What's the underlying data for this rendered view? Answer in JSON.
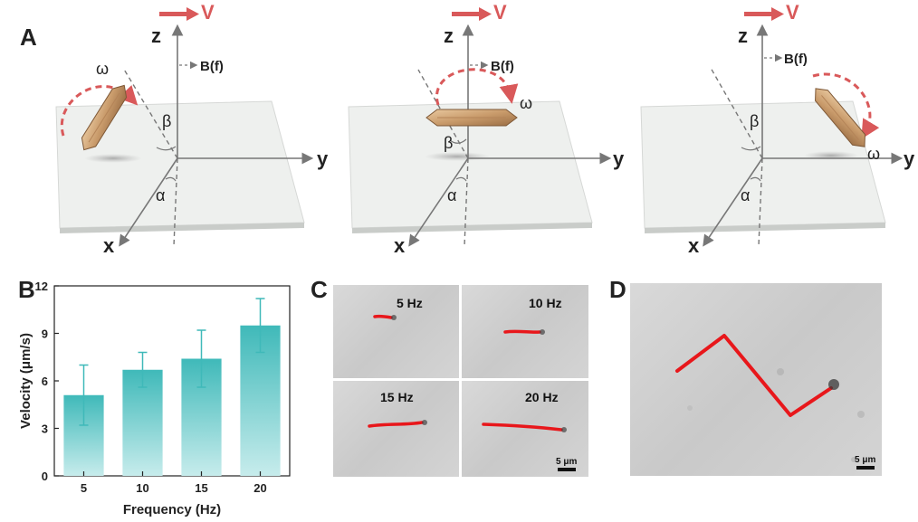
{
  "panels": {
    "a": "A",
    "b": "B",
    "c": "C",
    "d": "D"
  },
  "schematic": {
    "axis_x": "x",
    "axis_y": "y",
    "axis_z": "z",
    "velocity": "V",
    "field": "B(f)",
    "omega": "ω",
    "alpha": "α",
    "beta": "β"
  },
  "chart_data": {
    "type": "bar",
    "categories": [
      "5",
      "10",
      "15",
      "20"
    ],
    "values": [
      5.1,
      6.7,
      7.4,
      9.5
    ],
    "errors": [
      1.9,
      1.1,
      1.8,
      1.7
    ],
    "xlabel": "Frequency (Hz)",
    "ylabel": "Velocity (μm/s)",
    "ylim": [
      0,
      12
    ],
    "yticks": [
      "0",
      "3",
      "6",
      "9",
      "12"
    ],
    "bar_color_top": "#3fb9b9",
    "bar_color_bottom": "#c7ecec"
  },
  "trajectories": {
    "cells": [
      {
        "label": "5 Hz"
      },
      {
        "label": "10 Hz"
      },
      {
        "label": "15 Hz"
      },
      {
        "label": "20 Hz"
      }
    ],
    "scale_label": "5 μm",
    "path_color": "#e8171b"
  },
  "zigzag": {
    "scale_label": "5 μm"
  }
}
